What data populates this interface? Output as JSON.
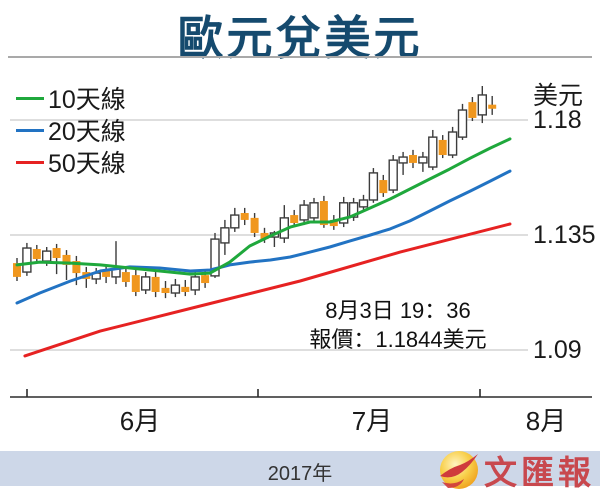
{
  "title": "歐元兌美元",
  "legend": [
    {
      "label": "10天線"
    },
    {
      "label": "20天線"
    },
    {
      "label": "50天線"
    }
  ],
  "y_axis": {
    "unit_label": "美元",
    "ticks": [
      "1.18",
      "1.135",
      "1.09"
    ]
  },
  "x_axis": {
    "months": [
      "6月",
      "7月",
      "8月"
    ]
  },
  "annotation": {
    "line1": "8月3日 19：36",
    "line2": "報價：1.1844美元"
  },
  "footer": {
    "year": "2017年",
    "logo_text": "文匯報"
  },
  "colors": {
    "title": "#154a6e",
    "ma10": "#1fa83c",
    "ma20": "#2273c3",
    "ma50": "#e62222",
    "down_candle": "#f0971e",
    "up_candle": "#ffffff",
    "candle_outline": "#3c3c3c",
    "grid": "#c9c9c9",
    "axis": "#2b2b2b",
    "footer_bar": "#cdd7e8",
    "logo_red": "#c8484e"
  },
  "chart_data": {
    "type": "candlestick",
    "title": "歐元兌美元",
    "ylabel": "美元",
    "y_ticks": [
      1.18,
      1.135,
      1.09
    ],
    "ylim": [
      1.085,
      1.195
    ],
    "x_months": [
      "6月",
      "7月",
      "8月"
    ],
    "grid": true,
    "quote": {
      "date": "8月3日",
      "time": "19：36",
      "price": 1.1844,
      "unit": "美元"
    },
    "candles_ohlc": [
      [
        1.124,
        1.126,
        1.117,
        1.1186
      ],
      [
        1.1205,
        1.1319,
        1.119,
        1.1299
      ],
      [
        1.1295,
        1.1311,
        1.124,
        1.1256
      ],
      [
        1.1248,
        1.1303,
        1.1229,
        1.1287
      ],
      [
        1.1299,
        1.1315,
        1.1197,
        1.126
      ],
      [
        1.1272,
        1.1291,
        1.1174,
        1.1233
      ],
      [
        1.1248,
        1.1268,
        1.1154,
        1.1201
      ],
      [
        1.1205,
        1.1225,
        1.1143,
        1.1178
      ],
      [
        1.1178,
        1.1221,
        1.1158,
        1.1201
      ],
      [
        1.1209,
        1.1229,
        1.1162,
        1.1186
      ],
      [
        1.1186,
        1.1326,
        1.1158,
        1.1217
      ],
      [
        1.1205,
        1.1225,
        1.1147,
        1.1166
      ],
      [
        1.1193,
        1.1213,
        1.1111,
        1.1127
      ],
      [
        1.1135,
        1.1205,
        1.1119,
        1.1186
      ],
      [
        1.1186,
        1.1205,
        1.1107,
        1.1127
      ],
      [
        1.1143,
        1.117,
        1.1103,
        1.1123
      ],
      [
        1.1123,
        1.1178,
        1.1107,
        1.1154
      ],
      [
        1.1147,
        1.1174,
        1.1111,
        1.1127
      ],
      [
        1.1135,
        1.1205,
        1.1115,
        1.1186
      ],
      [
        1.1193,
        1.1213,
        1.1143,
        1.1162
      ],
      [
        1.119,
        1.1358,
        1.1182,
        1.1334
      ],
      [
        1.1319,
        1.1409,
        1.1272,
        1.1378
      ],
      [
        1.1378,
        1.1456,
        1.1362,
        1.1428
      ],
      [
        1.1436,
        1.1456,
        1.1389,
        1.1409
      ],
      [
        1.1417,
        1.1436,
        1.1342,
        1.1358
      ],
      [
        1.1358,
        1.1378,
        1.1319,
        1.1334
      ],
      [
        1.1342,
        1.1366,
        1.1303,
        1.1358
      ],
      [
        1.1338,
        1.1467,
        1.1319,
        1.1417
      ],
      [
        1.1428,
        1.1448,
        1.1381,
        1.1397
      ],
      [
        1.1409,
        1.1487,
        1.1389,
        1.1467
      ],
      [
        1.1417,
        1.1495,
        1.1401,
        1.1476
      ],
      [
        1.1483,
        1.1503,
        1.1378,
        1.1389
      ],
      [
        1.1409,
        1.1428,
        1.137,
        1.1385
      ],
      [
        1.1397,
        1.1499,
        1.1381,
        1.1476
      ],
      [
        1.142,
        1.1495,
        1.1405,
        1.1476
      ],
      [
        1.146,
        1.1507,
        1.144,
        1.1487
      ],
      [
        1.1487,
        1.1612,
        1.1476,
        1.1593
      ],
      [
        1.1565,
        1.1585,
        1.1499,
        1.1514
      ],
      [
        1.1526,
        1.1663,
        1.1514,
        1.1643
      ],
      [
        1.1632,
        1.1675,
        1.1585,
        1.1655
      ],
      [
        1.1663,
        1.1683,
        1.1612,
        1.1632
      ],
      [
        1.1632,
        1.1675,
        1.1597,
        1.1655
      ],
      [
        1.1616,
        1.1761,
        1.1604,
        1.1733
      ],
      [
        1.1722,
        1.1741,
        1.1651,
        1.1663
      ],
      [
        1.1663,
        1.1773,
        1.1651,
        1.1753
      ],
      [
        1.1733,
        1.1863,
        1.1722,
        1.1839
      ],
      [
        1.187,
        1.189,
        1.1796,
        1.1808
      ],
      [
        1.182,
        1.1933,
        1.1788,
        1.1898
      ],
      [
        1.186,
        1.1894,
        1.182,
        1.1844
      ]
    ],
    "series": [
      {
        "name": "10天線",
        "color_key": "ma10",
        "points": [
          [
            0,
            1.1233
          ],
          [
            2.3,
            1.1244
          ],
          [
            5.4,
            1.124
          ],
          [
            8.4,
            1.1233
          ],
          [
            11.4,
            1.1221
          ],
          [
            14.4,
            1.1209
          ],
          [
            17.5,
            1.1197
          ],
          [
            19.5,
            1.1201
          ],
          [
            21.5,
            1.1244
          ],
          [
            23.5,
            1.1307
          ],
          [
            25.6,
            1.1346
          ],
          [
            27.6,
            1.1381
          ],
          [
            29.6,
            1.1401
          ],
          [
            31.6,
            1.1401
          ],
          [
            33.6,
            1.142
          ],
          [
            35.7,
            1.1456
          ],
          [
            37.7,
            1.1491
          ],
          [
            39.7,
            1.153
          ],
          [
            41.7,
            1.1569
          ],
          [
            43.7,
            1.1608
          ],
          [
            45.8,
            1.1651
          ],
          [
            47.8,
            1.169
          ],
          [
            49.8,
            1.1726
          ]
        ]
      },
      {
        "name": "20天線",
        "color_key": "ma20",
        "points": [
          [
            0,
            1.1084
          ],
          [
            2.3,
            1.1123
          ],
          [
            5.4,
            1.117
          ],
          [
            8.4,
            1.1209
          ],
          [
            11.4,
            1.1225
          ],
          [
            14.4,
            1.1221
          ],
          [
            17.5,
            1.1209
          ],
          [
            19.5,
            1.1213
          ],
          [
            21.5,
            1.1233
          ],
          [
            23.5,
            1.1244
          ],
          [
            25.6,
            1.1252
          ],
          [
            27.6,
            1.1264
          ],
          [
            29.6,
            1.1283
          ],
          [
            31.6,
            1.1303
          ],
          [
            33.6,
            1.1326
          ],
          [
            35.7,
            1.135
          ],
          [
            37.7,
            1.1374
          ],
          [
            39.7,
            1.1405
          ],
          [
            41.7,
            1.1444
          ],
          [
            43.7,
            1.1483
          ],
          [
            45.8,
            1.1522
          ],
          [
            47.8,
            1.1561
          ],
          [
            49.8,
            1.16
          ]
        ]
      },
      {
        "name": "50天線",
        "color_key": "ma50",
        "points": [
          [
            0.8,
            1.0877
          ],
          [
            8.4,
            1.0974
          ],
          [
            18.5,
            1.1072
          ],
          [
            28.6,
            1.117
          ],
          [
            38.7,
            1.1283
          ],
          [
            49.8,
            1.1393
          ]
        ]
      }
    ]
  }
}
